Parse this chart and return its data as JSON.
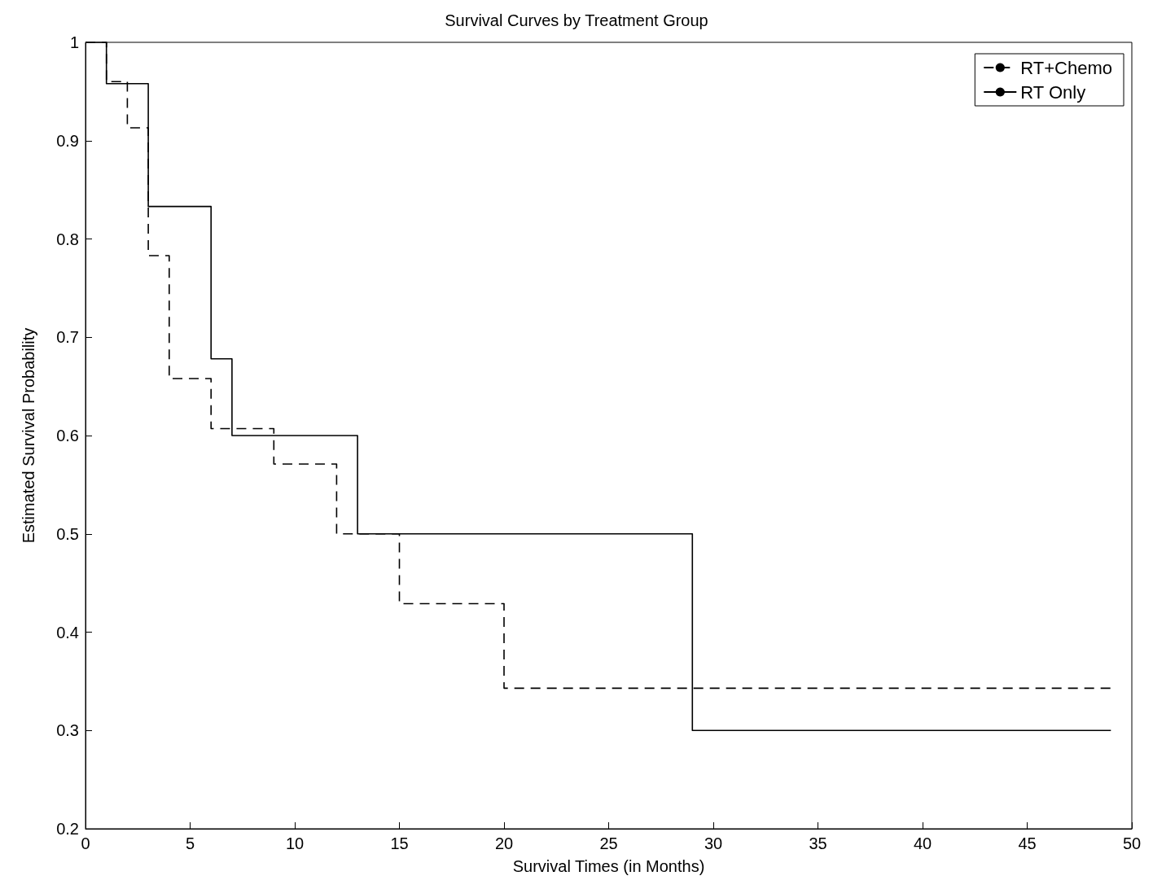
{
  "chart_data": {
    "type": "step",
    "title": "Survival Curves by Treatment Group",
    "xlabel": "Survival Times (in Months)",
    "ylabel": "Estimated Survival Probability",
    "series": [
      {
        "name": "RT+Chemo",
        "color": "#000000",
        "line_style": "dashed",
        "x": [
          0,
          1,
          2,
          3,
          4,
          6,
          9,
          12,
          15,
          20,
          49
        ],
        "values": [
          1,
          0.96,
          0.913,
          0.783,
          0.658,
          0.607,
          0.571,
          0.5,
          0.429,
          0.343,
          0.343
        ]
      },
      {
        "name": "RT Only",
        "color": "#000000",
        "line_style": "solid",
        "x": [
          0,
          1,
          3,
          6,
          7,
          13,
          29,
          49
        ],
        "values": [
          1,
          0.958,
          0.833,
          0.678,
          0.6,
          0.5,
          0.3,
          0.3
        ]
      }
    ],
    "xlim": [
      0,
      50
    ],
    "xticks": [
      0,
      5,
      10,
      15,
      20,
      25,
      30,
      35,
      40,
      45,
      50
    ],
    "ylim": [
      0.2,
      1
    ],
    "yticks": [
      0.2,
      0.3,
      0.4,
      0.5,
      0.6,
      0.7,
      0.8,
      0.9,
      1
    ],
    "grid": false,
    "legend": "top right",
    "marker": "none"
  }
}
